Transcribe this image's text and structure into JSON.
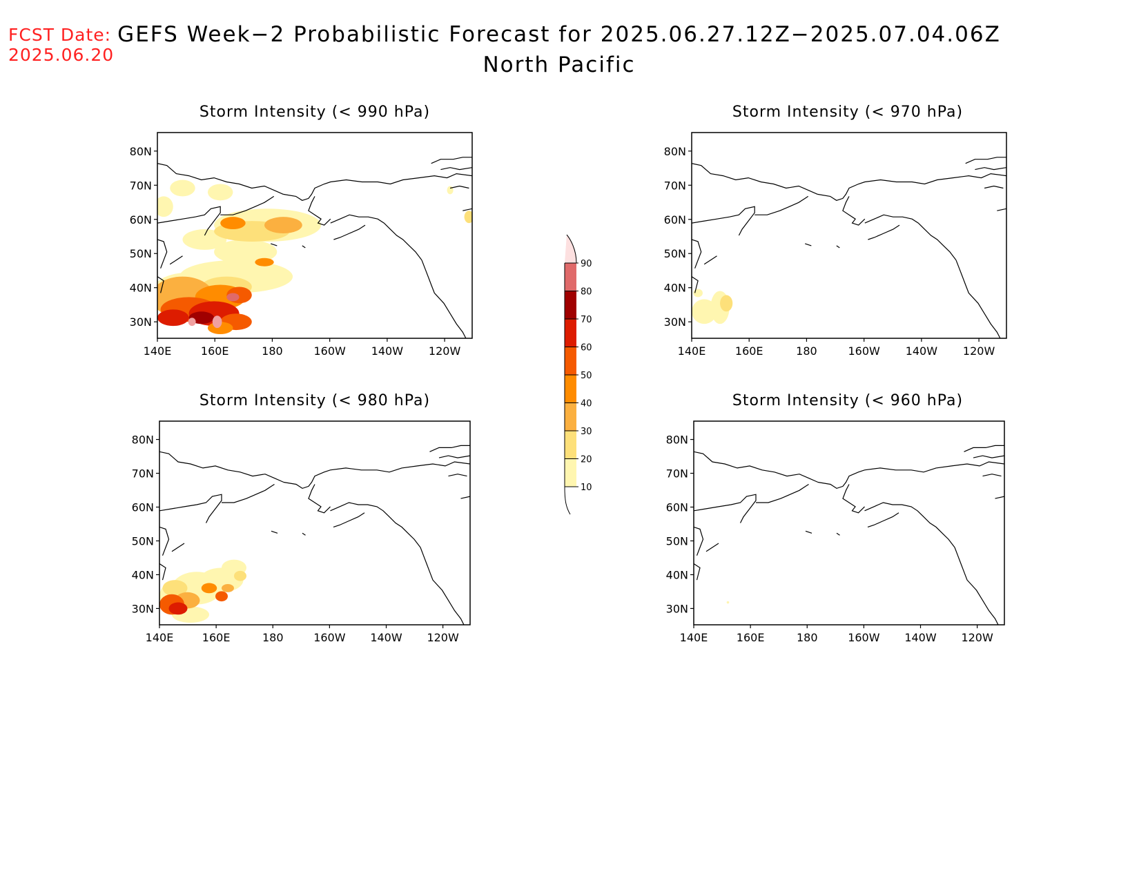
{
  "header": {
    "fcst_label": "FCST Date:",
    "fcst_date": "2025.06.20",
    "title": "GEFS Week−2 Probabilistic Forecast for 2025.06.27.12Z−2025.07.04.06Z",
    "subtitle": "North Pacific"
  },
  "axes": {
    "lat_ticks": [
      "80N",
      "70N",
      "60N",
      "50N",
      "40N",
      "30N"
    ],
    "lon_ticks": [
      "140E",
      "160E",
      "180",
      "160W",
      "140W",
      "120W"
    ]
  },
  "panels": [
    {
      "id": "p990",
      "title": "Storm Intensity (< 990 hPa)",
      "coverage": "high"
    },
    {
      "id": "p970",
      "title": "Storm Intensity (< 970 hPa)",
      "coverage": "low"
    },
    {
      "id": "p980",
      "title": "Storm Intensity (< 980 hPa)",
      "coverage": "medium"
    },
    {
      "id": "p960",
      "title": "Storm Intensity (< 960 hPa)",
      "coverage": "none"
    }
  ],
  "colorbar": {
    "levels": [
      "10",
      "20",
      "30",
      "40",
      "50",
      "60",
      "70",
      "80",
      "90"
    ],
    "colors": [
      "#fff6b0",
      "#fde07a",
      "#fbb040",
      "#ff8c00",
      "#f55a00",
      "#dd1c00",
      "#a00000",
      "#e06a6a",
      "#f0a0a0",
      "#fde0e0"
    ]
  }
}
